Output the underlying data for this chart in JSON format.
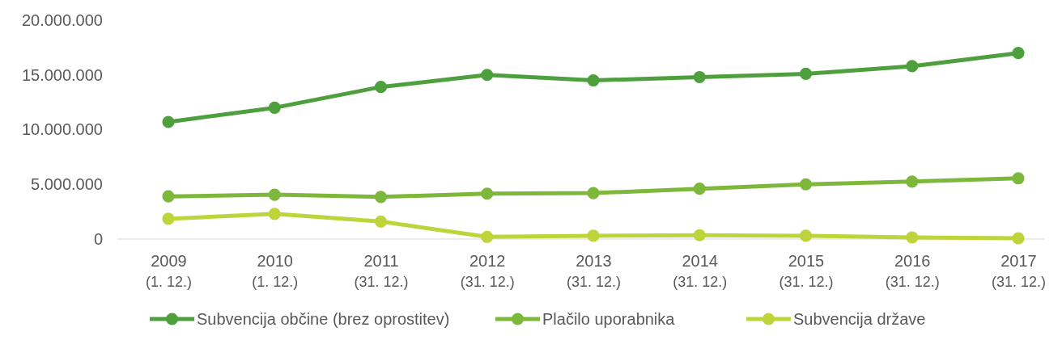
{
  "chart_data": {
    "type": "line",
    "categories": [
      "2009\n(1. 12.)",
      "2010\n(1. 12.)",
      "2011\n(31. 12.)",
      "2012\n(31. 12.)",
      "2013\n(31. 12.)",
      "2014\n(31. 12.)",
      "2015\n(31. 12.)",
      "2016\n(31. 12.)",
      "2017\n(31. 12.)"
    ],
    "series": [
      {
        "name": "Subvencija občine (brez oprostitev)",
        "color": "#4e9f3d",
        "values": [
          10700000,
          12000000,
          13900000,
          15000000,
          14500000,
          14800000,
          15100000,
          15800000,
          17000000
        ]
      },
      {
        "name": "Plačilo uporabnika",
        "color": "#7db83c",
        "values": [
          3900000,
          4050000,
          3850000,
          4150000,
          4200000,
          4600000,
          5000000,
          5250000,
          5550000
        ]
      },
      {
        "name": "Subvencija države",
        "color": "#bdd53b",
        "values": [
          1850000,
          2300000,
          1600000,
          200000,
          300000,
          350000,
          300000,
          150000,
          70000
        ]
      }
    ],
    "ylim": [
      0,
      20000000
    ],
    "yticks": [
      {
        "value": 0,
        "label": "0"
      },
      {
        "value": 5000000,
        "label": "5.000.000"
      },
      {
        "value": 10000000,
        "label": "10.000.000"
      },
      {
        "value": 15000000,
        "label": "15.000.000"
      },
      {
        "value": 20000000,
        "label": "20.000.000"
      }
    ],
    "grid": false,
    "legend": "bottom",
    "marker": "circle",
    "line_style": "solid"
  }
}
